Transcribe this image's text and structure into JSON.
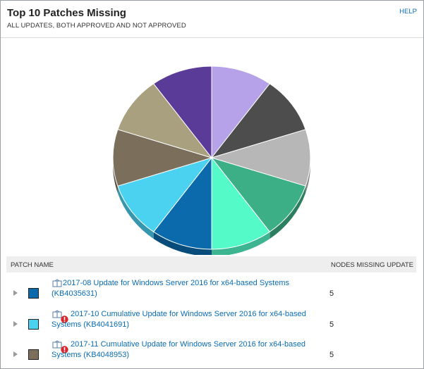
{
  "widget": {
    "title": "Top 10 Patches Missing",
    "subtitle": "ALL UPDATES, BOTH APPROVED AND NOT APPROVED",
    "help_label": "HELP"
  },
  "chart_data": {
    "type": "pie",
    "title": "",
    "slices": [
      {
        "color": "#b5a2e8",
        "value": 5
      },
      {
        "color": "#4d4d4d",
        "value": 5
      },
      {
        "color": "#b7b7b7",
        "value": 5
      },
      {
        "color": "#3daf87",
        "value": 5
      },
      {
        "color": "#54fbc8",
        "value": 5
      },
      {
        "color": "#0a6aab",
        "value": 5
      },
      {
        "color": "#4cd2f1",
        "value": 5
      },
      {
        "color": "#7b6f5c",
        "value": 5
      },
      {
        "color": "#a9a080",
        "value": 5
      },
      {
        "color": "#5b3b98",
        "value": 5
      }
    ]
  },
  "table": {
    "headers": {
      "patch_name": "PATCH NAME",
      "nodes_missing": "NODES MISSING UPDATE"
    },
    "rows": [
      {
        "swatch_color": "#0a6aab",
        "warning": false,
        "name": "2017-08 Update for Windows Server 2016 for x64-based Systems (KB4035631)",
        "nodes": "5"
      },
      {
        "swatch_color": "#4cd2f1",
        "warning": true,
        "name": "2017-10 Cumulative Update for Windows Server 2016 for x64-based Systems (KB4041691)",
        "nodes": "5"
      },
      {
        "swatch_color": "#7b6f5c",
        "warning": true,
        "name": "2017-11 Cumulative Update for Windows Server 2016 for x64-based Systems (KB4048953)",
        "nodes": "5"
      }
    ]
  }
}
